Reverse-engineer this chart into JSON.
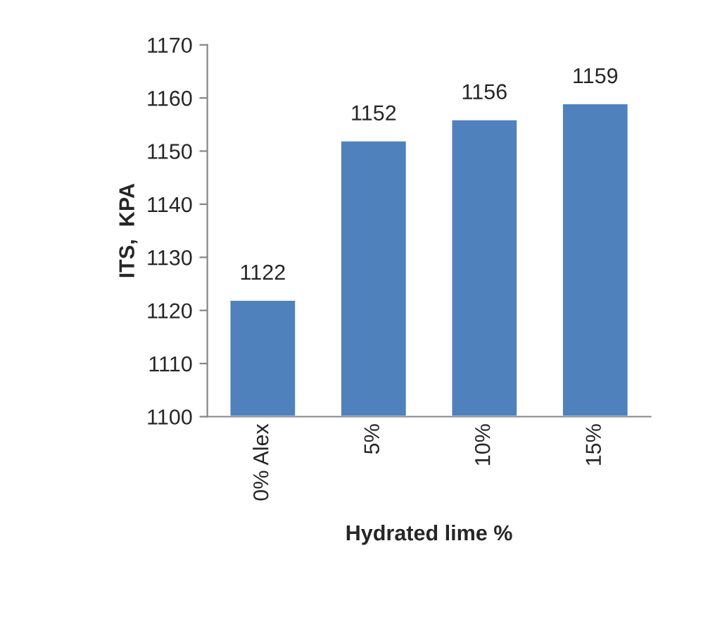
{
  "chart_data": {
    "type": "bar",
    "xlabel": "Hydrated lime %",
    "ylabel": "ITS,  KPA",
    "categories": [
      "0% Alex",
      "5%",
      "10%",
      "15%"
    ],
    "values": [
      1122,
      1152,
      1156,
      1159
    ],
    "color": "#4f81bd",
    "ylim": [
      1100,
      1170
    ],
    "yticks": [
      1100,
      1110,
      1120,
      1130,
      1140,
      1150,
      1160,
      1170
    ],
    "data_labels": true,
    "grid": false,
    "legend": false
  }
}
